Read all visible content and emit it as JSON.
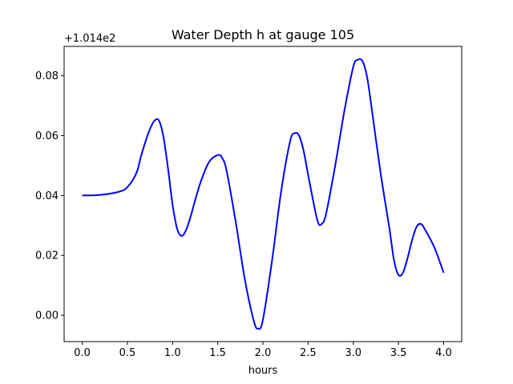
{
  "chart_data": {
    "type": "line",
    "title": "Water Depth h at gauge 105",
    "xlabel": "hours",
    "ylabel": "",
    "offset_label": "+1.014e2",
    "xlim": [
      -0.2,
      4.2
    ],
    "ylim": [
      -0.0088,
      0.0898
    ],
    "xticks": [
      0.0,
      0.5,
      1.0,
      1.5,
      2.0,
      2.5,
      3.0,
      3.5,
      4.0
    ],
    "xtick_labels": [
      "0.0",
      "0.5",
      "1.0",
      "1.5",
      "2.0",
      "2.5",
      "3.0",
      "3.5",
      "4.0"
    ],
    "yticks": [
      0.0,
      0.02,
      0.04,
      0.06,
      0.08
    ],
    "ytick_labels": [
      "0.00",
      "0.02",
      "0.04",
      "0.06",
      "0.08"
    ],
    "grid": false,
    "series": [
      {
        "color": "#0000ff",
        "x": [
          0.0,
          0.2,
          0.4,
          0.5,
          0.6,
          0.65,
          0.7,
          0.75,
          0.8,
          0.85,
          0.9,
          0.95,
          1.0,
          1.05,
          1.1,
          1.15,
          1.2,
          1.3,
          1.4,
          1.5,
          1.55,
          1.6,
          1.7,
          1.8,
          1.9,
          1.95,
          2.0,
          2.1,
          2.2,
          2.3,
          2.35,
          2.4,
          2.45,
          2.5,
          2.6,
          2.65,
          2.7,
          2.8,
          2.9,
          3.0,
          3.05,
          3.1,
          3.15,
          3.2,
          3.3,
          3.4,
          3.45,
          3.5,
          3.55,
          3.6,
          3.65,
          3.7,
          3.75,
          3.8,
          3.9,
          4.0
        ],
        "y": [
          0.04,
          0.0402,
          0.0412,
          0.0428,
          0.0475,
          0.053,
          0.058,
          0.0622,
          0.065,
          0.065,
          0.0595,
          0.049,
          0.037,
          0.029,
          0.0265,
          0.0285,
          0.033,
          0.0435,
          0.051,
          0.0535,
          0.0525,
          0.048,
          0.031,
          0.012,
          -0.002,
          -0.0045,
          -0.0015,
          0.018,
          0.041,
          0.058,
          0.0608,
          0.06,
          0.055,
          0.047,
          0.032,
          0.0305,
          0.034,
          0.05,
          0.068,
          0.083,
          0.0853,
          0.085,
          0.08,
          0.07,
          0.048,
          0.029,
          0.0185,
          0.0135,
          0.0142,
          0.019,
          0.025,
          0.0295,
          0.0305,
          0.0283,
          0.0225,
          0.0142
        ]
      }
    ]
  }
}
